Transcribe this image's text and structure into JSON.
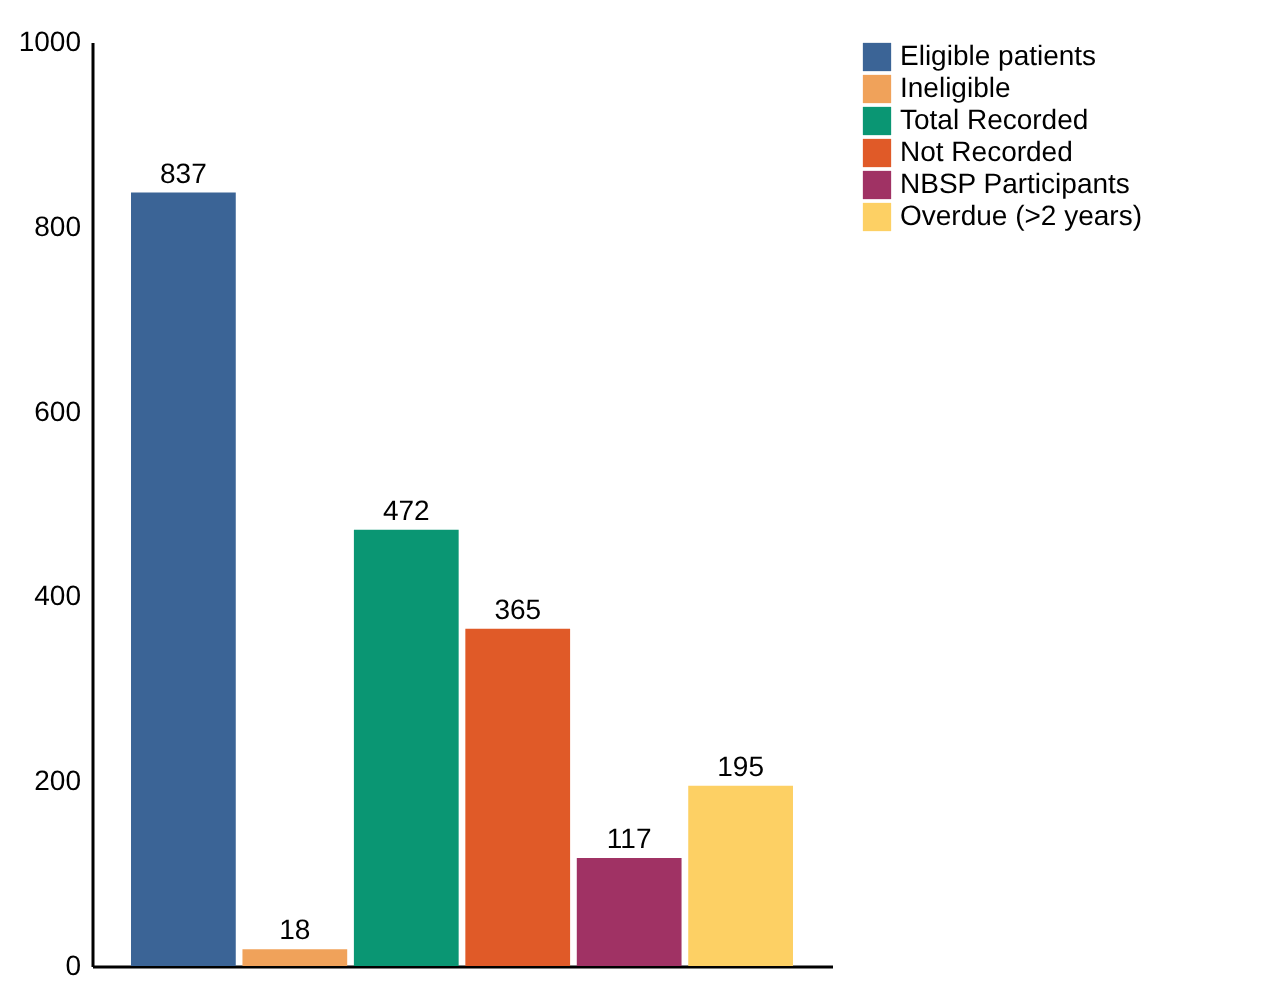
{
  "chart_data": {
    "type": "bar",
    "categories": [
      null,
      null,
      null,
      null,
      null,
      null
    ],
    "series": [
      {
        "name": "Eligible patients",
        "color": "#3b6496",
        "values": [
          837,
          null,
          null,
          null,
          null,
          null
        ]
      },
      {
        "name": "Ineligible",
        "color": "#f0a25a",
        "values": [
          null,
          18,
          null,
          null,
          null,
          null
        ]
      },
      {
        "name": "Total Recorded",
        "color": "#0a9673",
        "values": [
          null,
          null,
          472,
          null,
          null,
          null
        ]
      },
      {
        "name": "Not Recorded",
        "color": "#e05a28",
        "values": [
          null,
          null,
          null,
          365,
          null,
          null
        ]
      },
      {
        "name": "NBSP Participants",
        "color": "#a03264",
        "values": [
          null,
          null,
          null,
          null,
          117,
          null
        ]
      },
      {
        "name": "Overdue (>2 years)",
        "color": "#fdd064",
        "values": [
          null,
          null,
          null,
          null,
          null,
          195
        ]
      }
    ],
    "ylim": [
      0,
      1000
    ],
    "yticks": [
      0,
      200,
      400,
      600,
      800,
      1000
    ],
    "grid": false,
    "legend": "right",
    "data_labels": true,
    "tick_labels": "y"
  }
}
